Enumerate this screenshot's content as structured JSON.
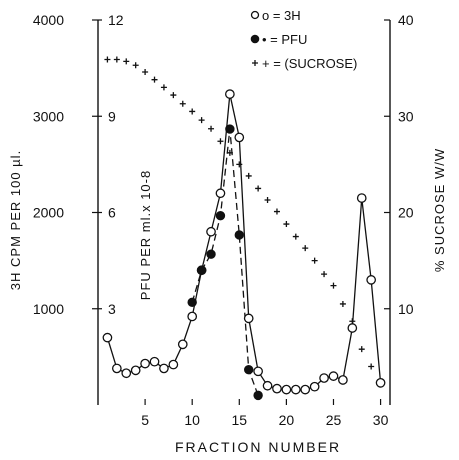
{
  "chart_data": {
    "type": "line",
    "xlabel": "FRACTION NUMBER",
    "xlim": [
      0,
      31
    ],
    "x_ticks": [
      5,
      10,
      15,
      20,
      25,
      30
    ],
    "axes": {
      "cpm": {
        "label": "3H CPM PER 100 µl.",
        "range": [
          0,
          4000
        ],
        "ticks": [
          1000,
          2000,
          3000,
          4000
        ]
      },
      "pfu": {
        "label": "PFU PER ml.x 10-8",
        "range": [
          0,
          12
        ],
        "ticks": [
          3,
          6,
          9,
          12
        ]
      },
      "sucrose": {
        "label": "% SUCROSE W/W",
        "range": [
          0,
          40
        ],
        "ticks": [
          10,
          20,
          30,
          40
        ]
      }
    },
    "series": [
      {
        "name": "3H",
        "legend": "o = 3H",
        "axis": "cpm",
        "marker": "open-circle",
        "line": "solid",
        "x": [
          1,
          2,
          3,
          4,
          5,
          6,
          7,
          8,
          9,
          10,
          11,
          12,
          13,
          14,
          15,
          16,
          17,
          18,
          19,
          20,
          21,
          22,
          23,
          24,
          25,
          26,
          27,
          28,
          29,
          30
        ],
        "y": [
          700,
          380,
          330,
          360,
          430,
          450,
          380,
          420,
          630,
          920,
          1400,
          1800,
          2200,
          3230,
          2780,
          900,
          350,
          200,
          170,
          160,
          160,
          160,
          190,
          280,
          300,
          260,
          800,
          2150,
          1300,
          230
        ]
      },
      {
        "name": "PFU",
        "legend": "• = PFU",
        "axis": "pfu",
        "marker": "filled-circle",
        "line": "dashed",
        "x": [
          10,
          11,
          12,
          13,
          14,
          15,
          16,
          17
        ],
        "y": [
          3.2,
          4.2,
          4.7,
          5.9,
          8.6,
          5.3,
          1.1,
          0.3
        ]
      },
      {
        "name": "(SUCROSE)",
        "legend": "+ = (SUCROSE)",
        "axis": "sucrose",
        "marker": "plus",
        "line": "none",
        "x": [
          1,
          2,
          3,
          4,
          5,
          6,
          7,
          8,
          9,
          10,
          11,
          12,
          13,
          14,
          15,
          16,
          17,
          18,
          19,
          20,
          21,
          22,
          23,
          24,
          25,
          26,
          27,
          28,
          29
        ],
        "y": [
          35.9,
          35.9,
          35.7,
          35.3,
          34.6,
          33.8,
          33.0,
          32.2,
          31.3,
          30.5,
          29.6,
          28.7,
          27.4,
          26.2,
          25.0,
          23.8,
          22.5,
          21.3,
          20.1,
          18.8,
          17.5,
          16.3,
          15.0,
          13.6,
          12.4,
          10.5,
          8.7,
          5.8,
          4.0
        ]
      }
    ],
    "grid": false,
    "legend_position": "top-right"
  }
}
